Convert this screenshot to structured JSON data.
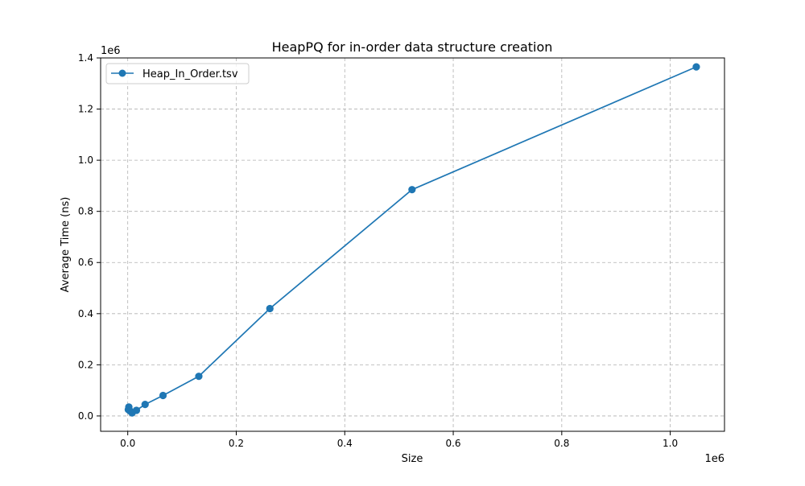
{
  "chart_data": {
    "type": "line",
    "title": "HeapPQ for in-order data structure creation",
    "xlabel": "Size",
    "ylabel": "Average Time (ns)",
    "x_offset_label": "1e6",
    "y_offset_label": "1e6",
    "x_scale_factor": 1000000,
    "y_scale_factor": 1000000,
    "xlim": [
      -50000,
      1100000
    ],
    "ylim": [
      -60000,
      1400000
    ],
    "xticks": [
      0,
      200000,
      400000,
      600000,
      800000,
      1000000
    ],
    "xtick_labels": [
      "0.0",
      "0.2",
      "0.4",
      "0.6",
      "0.8",
      "1.0"
    ],
    "yticks": [
      0,
      200000,
      400000,
      600000,
      800000,
      1000000,
      1200000,
      1400000
    ],
    "ytick_labels": [
      "0.0",
      "0.2",
      "0.4",
      "0.6",
      "0.8",
      "1.0",
      "1.2",
      "1.4"
    ],
    "grid": true,
    "legend_position": "top-left",
    "series": [
      {
        "name": "Heap_In_Order.tsv",
        "color": "#1f77b4",
        "marker": "circle",
        "x": [
          1000,
          2000,
          4000,
          8000,
          16000,
          32000,
          65000,
          131000,
          262000,
          524000,
          1048000
        ],
        "y": [
          25000,
          35000,
          20000,
          12000,
          22000,
          45000,
          80000,
          155000,
          420000,
          885000,
          1365000
        ]
      }
    ]
  }
}
